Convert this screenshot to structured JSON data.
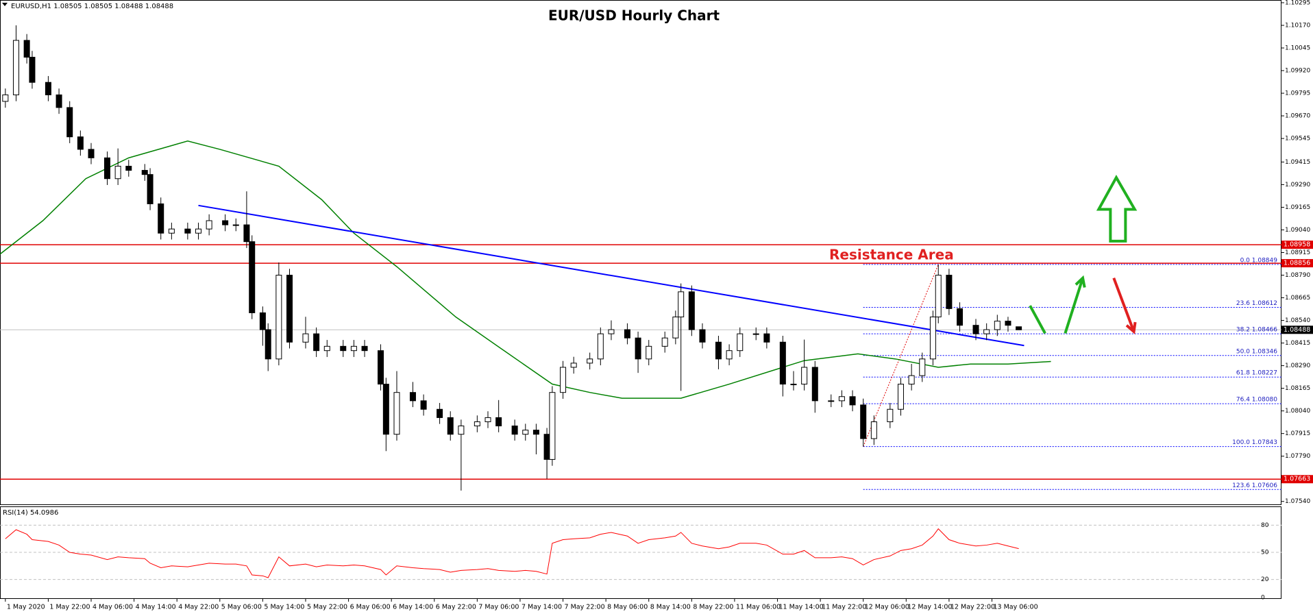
{
  "chart_data": [
    {
      "type": "candlestick",
      "title": "EUR/USD Hourly Chart",
      "header": "EURUSD,H1  1.08505 1.08505 1.08488 1.08488",
      "annotation": "Resistance Area",
      "x": [
        0,
        2,
        4,
        5,
        8,
        10,
        12,
        14,
        16,
        19,
        21,
        23,
        26,
        27,
        29,
        31,
        34,
        36,
        38,
        41,
        43,
        45,
        46,
        48,
        49,
        51,
        53,
        56,
        58,
        60,
        63,
        65,
        67,
        70,
        71,
        73,
        76,
        78,
        81,
        83,
        85,
        88,
        90,
        92,
        95,
        97,
        99,
        101,
        102,
        104,
        106,
        109,
        111,
        113,
        116,
        118,
        120,
        123,
        125,
        126,
        128,
        130,
        133,
        135,
        137,
        140,
        142,
        145,
        147,
        149,
        151,
        154,
        156,
        158,
        160,
        162,
        165,
        167,
        169,
        171,
        173,
        174,
        176,
        178,
        181,
        183,
        185,
        187,
        189
      ],
      "open": [
        1.0975,
        1.09786,
        1.10087,
        1.09994,
        1.09855,
        1.09786,
        1.09716,
        1.09554,
        1.09485,
        1.09438,
        1.09323,
        1.09392,
        1.09369,
        1.09346,
        1.09184,
        1.09022,
        1.09045,
        1.09022,
        1.09045,
        1.09091,
        1.09068,
        1.09068,
        1.08975,
        1.08582,
        1.08489,
        1.08327,
        1.0879,
        1.0842,
        1.08466,
        1.08373,
        1.08397,
        1.08373,
        1.08397,
        1.08373,
        1.08188,
        1.07911,
        1.08142,
        1.08096,
        1.08049,
        1.08003,
        1.07911,
        1.07957,
        1.0798,
        1.08003,
        1.07957,
        1.07911,
        1.07934,
        1.07911,
        1.07772,
        1.08142,
        1.08281,
        1.08304,
        1.08327,
        1.08466,
        1.08489,
        1.08443,
        1.08327,
        1.08397,
        1.08443,
        1.08559,
        1.08698,
        1.08489,
        1.0842,
        1.08327,
        1.08373,
        1.08466,
        1.08466,
        1.0842,
        1.08188,
        1.08188,
        1.08281,
        1.08096,
        1.08096,
        1.08119,
        1.08073,
        1.07887,
        1.0798,
        1.08049,
        1.08188,
        1.08235,
        1.08327,
        1.08559,
        1.0879,
        1.08605,
        1.08513,
        1.08466,
        1.08489,
        1.08536,
        1.08505
      ],
      "high": [
        1.09821,
        1.1017,
        1.10122,
        1.10029,
        1.0989,
        1.09821,
        1.09751,
        1.09589,
        1.0952,
        1.09473,
        1.0949,
        1.09427,
        1.09404,
        1.09381,
        1.09219,
        1.0908,
        1.0908,
        1.0908,
        1.09126,
        1.09126,
        1.09103,
        1.09253,
        1.0901,
        1.08617,
        1.08524,
        1.0886,
        1.08825,
        1.0856,
        1.08501,
        1.08432,
        1.08432,
        1.08432,
        1.08432,
        1.08408,
        1.08223,
        1.0826,
        1.082,
        1.08131,
        1.08084,
        1.08038,
        1.07992,
        1.08015,
        1.08038,
        1.081,
        1.07992,
        1.07969,
        1.07969,
        1.07946,
        1.08177,
        1.08316,
        1.08339,
        1.08362,
        1.08501,
        1.0854,
        1.08524,
        1.08478,
        1.08432,
        1.08478,
        1.08594,
        1.08744,
        1.08733,
        1.08524,
        1.08455,
        1.08408,
        1.08501,
        1.08501,
        1.08501,
        1.08455,
        1.0826,
        1.08434,
        1.08316,
        1.08131,
        1.08154,
        1.08154,
        1.08108,
        1.08015,
        1.08084,
        1.08223,
        1.083,
        1.08362,
        1.08594,
        1.08849,
        1.08825,
        1.0864,
        1.08548,
        1.08524,
        1.08571,
        1.0856,
        1.08505
      ],
      "low": [
        1.09715,
        1.09751,
        1.09959,
        1.0982,
        1.09751,
        1.09681,
        1.09519,
        1.0945,
        1.09403,
        1.09288,
        1.09288,
        1.09334,
        1.09311,
        1.09149,
        1.08987,
        1.08987,
        1.08987,
        1.08987,
        1.0901,
        1.09033,
        1.09033,
        1.0894,
        1.08547,
        1.084,
        1.0826,
        1.08292,
        1.08385,
        1.08385,
        1.08338,
        1.08338,
        1.08338,
        1.08338,
        1.08338,
        1.08153,
        1.07818,
        1.07876,
        1.08061,
        1.08014,
        1.07968,
        1.07876,
        1.076,
        1.07922,
        1.07945,
        1.07922,
        1.07876,
        1.07876,
        1.078,
        1.07665,
        1.07737,
        1.08107,
        1.08246,
        1.08269,
        1.08292,
        1.08431,
        1.08408,
        1.0825,
        1.08292,
        1.08362,
        1.08408,
        1.08151,
        1.08454,
        1.08385,
        1.0827,
        1.08292,
        1.08338,
        1.08431,
        1.08385,
        1.0812,
        1.08153,
        1.08153,
        1.0803,
        1.08061,
        1.08061,
        1.08038,
        1.07843,
        1.07852,
        1.07945,
        1.08014,
        1.08153,
        1.082,
        1.08292,
        1.08524,
        1.0857,
        1.08478,
        1.08431,
        1.08431,
        1.08454,
        1.08478,
        1.08488
      ],
      "close": [
        1.09786,
        1.10087,
        1.09994,
        1.09855,
        1.09786,
        1.09716,
        1.09554,
        1.09485,
        1.09438,
        1.09323,
        1.09392,
        1.09369,
        1.09346,
        1.09184,
        1.09022,
        1.09045,
        1.09022,
        1.09045,
        1.09091,
        1.09068,
        1.09068,
        1.08975,
        1.08582,
        1.08489,
        1.08327,
        1.0879,
        1.0842,
        1.08466,
        1.08373,
        1.08397,
        1.08373,
        1.08397,
        1.08373,
        1.08188,
        1.07911,
        1.08142,
        1.08096,
        1.08049,
        1.08003,
        1.07911,
        1.07957,
        1.0798,
        1.08003,
        1.07957,
        1.07911,
        1.07934,
        1.07911,
        1.07772,
        1.08142,
        1.08281,
        1.08304,
        1.08327,
        1.08466,
        1.08489,
        1.08443,
        1.08327,
        1.08397,
        1.08443,
        1.08559,
        1.08698,
        1.08489,
        1.0842,
        1.08327,
        1.08373,
        1.08466,
        1.08466,
        1.0842,
        1.08188,
        1.08188,
        1.08281,
        1.08096,
        1.08096,
        1.08119,
        1.08073,
        1.07887,
        1.0798,
        1.08049,
        1.08188,
        1.08235,
        1.08327,
        1.08559,
        1.0879,
        1.08605,
        1.08513,
        1.08466,
        1.08489,
        1.08536,
        1.08513,
        1.08488
      ],
      "ma": {
        "color": "#008000",
        "x": [
          -1,
          7,
          15,
          23,
          34,
          40,
          51,
          59,
          65,
          73,
          84,
          93,
          102,
          109,
          115,
          126,
          135,
          145,
          149,
          159,
          166,
          174,
          180,
          187,
          195
        ],
        "values": [
          1.08906,
          1.09091,
          1.09323,
          1.09438,
          1.09531,
          1.09485,
          1.09392,
          1.09207,
          1.09022,
          1.08837,
          1.08559,
          1.08373,
          1.08188,
          1.08142,
          1.0811,
          1.0811,
          1.08188,
          1.08281,
          1.08318,
          1.08355,
          1.08327,
          1.08281,
          1.08299,
          1.08299,
          1.08313
        ]
      },
      "trendline": {
        "color": "#0000ff",
        "x": [
          36,
          190
        ],
        "y": [
          1.09175,
          1.08401
        ]
      },
      "fibonacci": {
        "color": "#0000ff",
        "x": [
          160,
          174
        ],
        "levels": [
          {
            "label": "0.0 1.08849",
            "value": 1.08849
          },
          {
            "label": "23.6 1.08612",
            "value": 1.08612
          },
          {
            "label": "38.2 1.08466",
            "value": 1.08466
          },
          {
            "label": "50.0 1.08346",
            "value": 1.08346
          },
          {
            "label": "61.8 1.08227",
            "value": 1.08227
          },
          {
            "label": "76.4 1.08080",
            "value": 1.0808
          },
          {
            "label": "100.0 1.07843",
            "value": 1.07843
          },
          {
            "label": "123.6 1.07606",
            "value": 1.07606
          }
        ]
      },
      "hlines": [
        {
          "value": 1.08958,
          "color": "#e00000"
        },
        {
          "value": 1.08856,
          "color": "#e00000"
        },
        {
          "value": 1.07663,
          "color": "#e00000"
        },
        {
          "value": 1.08488,
          "color": "#c0c0c0",
          "tag_color": "#000000"
        }
      ],
      "xlim": [
        -1,
        238
      ],
      "ylim": [
        1.0752,
        1.1031
      ],
      "yticks": [
        1.10295,
        {
          "value": 1.1017,
          "label": "1.10170"
        },
        1.10045,
        {
          "value": 1.0992,
          "label": "1.09920"
        },
        1.09795,
        {
          "value": 1.0967,
          "label": "1.09670"
        },
        1.09545,
        1.09415,
        {
          "value": 1.0929,
          "label": "1.09290"
        },
        1.09165,
        {
          "value": 1.0904,
          "label": "1.09040"
        },
        1.08915,
        {
          "value": 1.0879,
          "label": "1.08790"
        },
        1.08665,
        {
          "value": 1.0854,
          "label": "1.08540"
        },
        1.08415,
        {
          "value": 1.0829,
          "label": "1.08290"
        },
        1.08165,
        {
          "value": 1.0804,
          "label": "1.08040"
        },
        1.07915,
        {
          "value": 1.0779,
          "label": "1.07790"
        },
        {
          "value": 1.0754,
          "label": "1.07540"
        }
      ],
      "xticks": [
        {
          "value": 0,
          "label": "1 May 2020"
        },
        {
          "value": 8,
          "label": "1 May 22:00"
        },
        {
          "value": 16,
          "label": "4 May 06:00"
        },
        {
          "value": 24,
          "label": "4 May 14:00"
        },
        {
          "value": 32,
          "label": "4 May 22:00"
        },
        {
          "value": 40,
          "label": "5 May 06:00"
        },
        {
          "value": 48,
          "label": "5 May 14:00"
        },
        {
          "value": 56,
          "label": "5 May 22:00"
        },
        {
          "value": 64,
          "label": "6 May 06:00"
        },
        {
          "value": 72,
          "label": "6 May 14:00"
        },
        {
          "value": 80,
          "label": "6 May 22:00"
        },
        {
          "value": 88,
          "label": "7 May 06:00"
        },
        {
          "value": 96,
          "label": "7 May 14:00"
        },
        {
          "value": 104,
          "label": "7 May 22:00"
        },
        {
          "value": 112,
          "label": "8 May 06:00"
        },
        {
          "value": 120,
          "label": "8 May 14:00"
        },
        {
          "value": 128,
          "label": "8 May 22:00"
        },
        {
          "value": 136,
          "label": "11 May 06:00"
        },
        {
          "value": 144,
          "label": "11 May 14:00"
        },
        {
          "value": 152,
          "label": "11 May 22:00"
        },
        {
          "value": 160,
          "label": "12 May 06:00"
        },
        {
          "value": 168,
          "label": "12 May 14:00"
        },
        {
          "value": 176,
          "label": "12 May 22:00"
        },
        {
          "value": 184,
          "label": "13 May 06:00"
        }
      ]
    },
    {
      "type": "line",
      "title": "RSI(14) 54.0986",
      "color": "#ff0000",
      "x": [
        0,
        2,
        4,
        5,
        8,
        10,
        12,
        14,
        16,
        19,
        21,
        23,
        26,
        27,
        29,
        31,
        34,
        36,
        38,
        41,
        43,
        45,
        46,
        48,
        49,
        51,
        53,
        56,
        58,
        60,
        63,
        65,
        67,
        70,
        71,
        73,
        76,
        78,
        81,
        83,
        85,
        88,
        90,
        92,
        95,
        97,
        99,
        101,
        102,
        104,
        106,
        109,
        111,
        113,
        116,
        118,
        120,
        123,
        125,
        126,
        128,
        130,
        133,
        135,
        137,
        140,
        142,
        145,
        147,
        149,
        151,
        154,
        156,
        158,
        160,
        162,
        165,
        167,
        169,
        171,
        173,
        174,
        176,
        178,
        181,
        183,
        185,
        187,
        189
      ],
      "values": [
        65,
        75,
        70,
        64,
        62,
        58,
        50,
        48,
        47,
        42,
        45,
        44,
        43,
        38,
        33,
        35,
        34,
        36,
        38,
        37,
        37,
        35,
        25,
        24,
        22,
        45,
        35,
        37,
        34,
        36,
        35,
        36,
        35,
        31,
        25,
        35,
        33,
        32,
        31,
        28,
        30,
        31,
        32,
        30,
        29,
        30,
        29,
        26,
        60,
        64,
        65,
        66,
        70,
        72,
        68,
        60,
        64,
        66,
        68,
        72,
        60,
        57,
        54,
        56,
        60,
        60,
        58,
        48,
        48,
        52,
        44,
        44,
        45,
        43,
        36,
        42,
        46,
        52,
        54,
        58,
        68,
        76,
        64,
        60,
        57,
        58,
        60,
        57,
        54.0986
      ],
      "xlim": [
        -1,
        238
      ],
      "ylim": [
        0,
        100
      ],
      "yticks": [
        0,
        20,
        50,
        80
      ],
      "grid": true
    }
  ]
}
